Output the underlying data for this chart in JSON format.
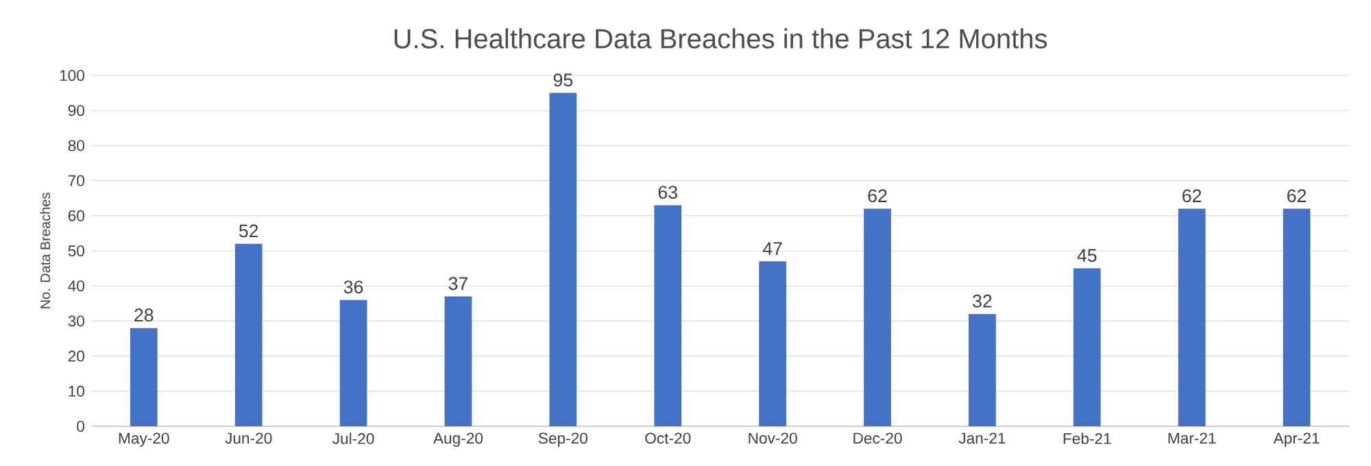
{
  "chart_data": {
    "type": "bar",
    "title": "U.S. Healthcare Data Breaches in the Past 12 Months",
    "ylabel": "No. Data Breaches",
    "categories": [
      "May-20",
      "Jun-20",
      "Jul-20",
      "Aug-20",
      "Sep-20",
      "Oct-20",
      "Nov-20",
      "Dec-20",
      "Jan-21",
      "Feb-21",
      "Mar-21",
      "Apr-21"
    ],
    "values": [
      28,
      52,
      36,
      37,
      95,
      63,
      47,
      62,
      32,
      45,
      62,
      62
    ],
    "color": "#4472c4",
    "ylim": [
      0,
      100
    ],
    "yticks": [
      0,
      10,
      20,
      30,
      40,
      50,
      60,
      70,
      80,
      90,
      100
    ],
    "grid": "y",
    "data_labels": true
  }
}
